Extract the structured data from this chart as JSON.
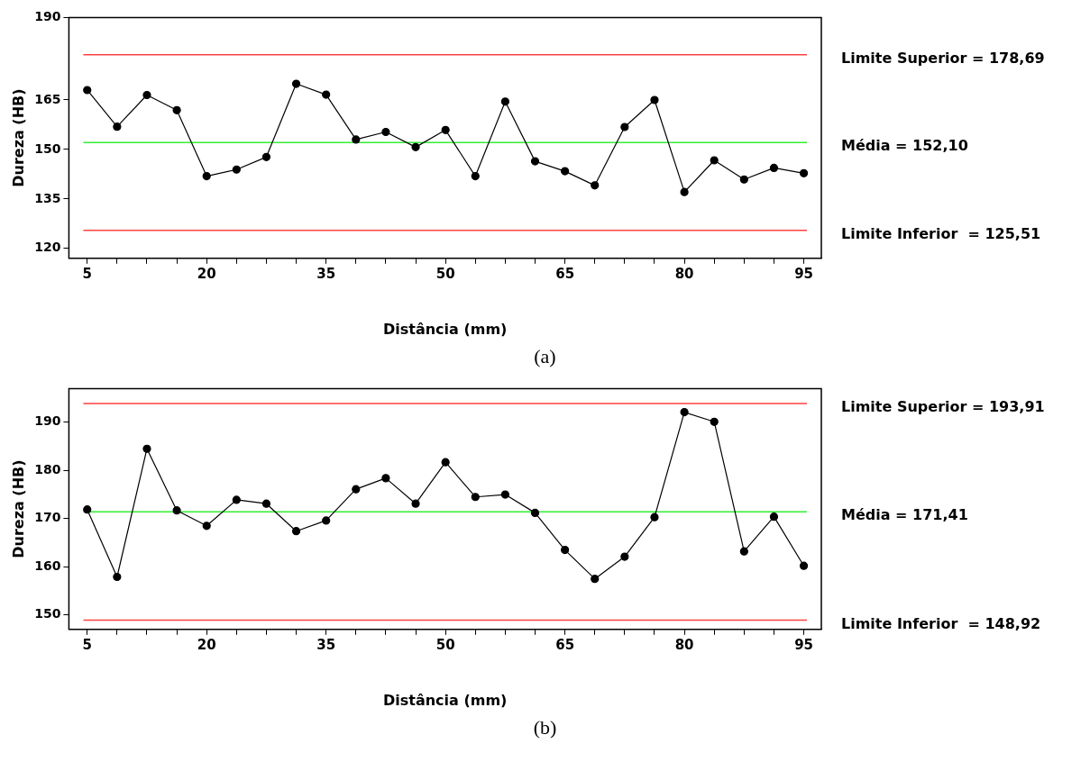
{
  "chart_data": [
    {
      "type": "line",
      "xlabel": "Distância (mm)",
      "ylabel": "Dureza (HB)",
      "annotations": [
        "(a)"
      ],
      "x": [
        5,
        8.75,
        12.5,
        16.25,
        20,
        23.75,
        27.5,
        31.25,
        35,
        38.75,
        42.5,
        46.25,
        50,
        53.75,
        57.5,
        61.25,
        65,
        68.75,
        72.5,
        76.25,
        80,
        83.75,
        87.5,
        91.25,
        95
      ],
      "series": [
        {
          "color": "#000000",
          "values": [
            168.0,
            156.9,
            166.5,
            161.9,
            141.9,
            143.9,
            147.7,
            169.9,
            166.6,
            153.0,
            155.3,
            150.7,
            155.9,
            141.9,
            164.5,
            146.4,
            143.4,
            139.1,
            156.8,
            165.0,
            137.1,
            146.7,
            140.9,
            144.4,
            142.8
          ]
        }
      ],
      "marker": "circle",
      "line_style": "solid",
      "grid": false,
      "legend": false,
      "xlim": [
        2.7,
        97.2
      ],
      "xticks": [
        5,
        {
          "value": 8.75,
          "label": null
        },
        {
          "value": 12.5,
          "label": null
        },
        {
          "value": 16.25,
          "label": null
        },
        20,
        {
          "value": 23.75,
          "label": null
        },
        {
          "value": 27.5,
          "label": null
        },
        {
          "value": 31.25,
          "label": null
        },
        35,
        {
          "value": 38.75,
          "label": null
        },
        {
          "value": 42.5,
          "label": null
        },
        {
          "value": 46.25,
          "label": null
        },
        50,
        {
          "value": 53.75,
          "label": null
        },
        {
          "value": 57.5,
          "label": null
        },
        {
          "value": 61.25,
          "label": null
        },
        65,
        {
          "value": 68.75,
          "label": null
        },
        {
          "value": 72.5,
          "label": null
        },
        {
          "value": 76.25,
          "label": null
        },
        80,
        {
          "value": 83.75,
          "label": null
        },
        {
          "value": 87.5,
          "label": null
        },
        {
          "value": 91.25,
          "label": null
        },
        95
      ],
      "ylim": [
        117,
        190
      ],
      "yticks": [
        120,
        135,
        150,
        165,
        190
      ],
      "ref_lines": [
        {
          "axis": "y",
          "value": 178.69,
          "label": "Limite Superior = 178,69",
          "color": "#ff4040"
        },
        {
          "axis": "y",
          "value": 152.1,
          "label": "Média = 152,10",
          "color": "#33ee33"
        },
        {
          "axis": "y",
          "value": 125.51,
          "label": "Limite Inferior  = 125,51",
          "color": "#ff4040"
        }
      ]
    },
    {
      "type": "line",
      "xlabel": "Distância (mm)",
      "ylabel": "Dureza (HB)",
      "annotations": [
        "(b)"
      ],
      "x": [
        5,
        8.75,
        12.5,
        16.25,
        20,
        23.75,
        27.5,
        31.25,
        35,
        38.75,
        42.5,
        46.25,
        50,
        53.75,
        57.5,
        61.25,
        65,
        68.75,
        72.5,
        76.25,
        80,
        83.75,
        87.5,
        91.25,
        95
      ],
      "series": [
        {
          "color": "#000000",
          "values": [
            171.9,
            157.9,
            184.5,
            171.7,
            168.5,
            173.9,
            173.1,
            167.4,
            169.6,
            176.1,
            178.4,
            173.1,
            181.7,
            174.5,
            175.0,
            171.2,
            163.5,
            157.5,
            162.1,
            170.3,
            192.1,
            190.1,
            163.2,
            170.4,
            160.2
          ]
        }
      ],
      "marker": "circle",
      "line_style": "solid",
      "grid": false,
      "legend": false,
      "xlim": [
        2.7,
        97.2
      ],
      "xticks": [
        5,
        {
          "value": 8.75,
          "label": null
        },
        {
          "value": 12.5,
          "label": null
        },
        {
          "value": 16.25,
          "label": null
        },
        20,
        {
          "value": 23.75,
          "label": null
        },
        {
          "value": 27.5,
          "label": null
        },
        {
          "value": 31.25,
          "label": null
        },
        35,
        {
          "value": 38.75,
          "label": null
        },
        {
          "value": 42.5,
          "label": null
        },
        {
          "value": 46.25,
          "label": null
        },
        50,
        {
          "value": 53.75,
          "label": null
        },
        {
          "value": 57.5,
          "label": null
        },
        {
          "value": 61.25,
          "label": null
        },
        65,
        {
          "value": 68.75,
          "label": null
        },
        {
          "value": 72.5,
          "label": null
        },
        {
          "value": 76.25,
          "label": null
        },
        80,
        {
          "value": 83.75,
          "label": null
        },
        {
          "value": 87.5,
          "label": null
        },
        {
          "value": 91.25,
          "label": null
        },
        95
      ],
      "ylim": [
        147,
        197
      ],
      "yticks": [
        150,
        160,
        170,
        180,
        190
      ],
      "ref_lines": [
        {
          "axis": "y",
          "value": 193.91,
          "label": "Limite Superior = 193,91",
          "color": "#ff4040"
        },
        {
          "axis": "y",
          "value": 171.41,
          "label": "Média = 171,41",
          "color": "#33ee33"
        },
        {
          "axis": "y",
          "value": 148.92,
          "label": "Limite Inferior  = 148,92",
          "color": "#ff4040"
        }
      ]
    }
  ]
}
